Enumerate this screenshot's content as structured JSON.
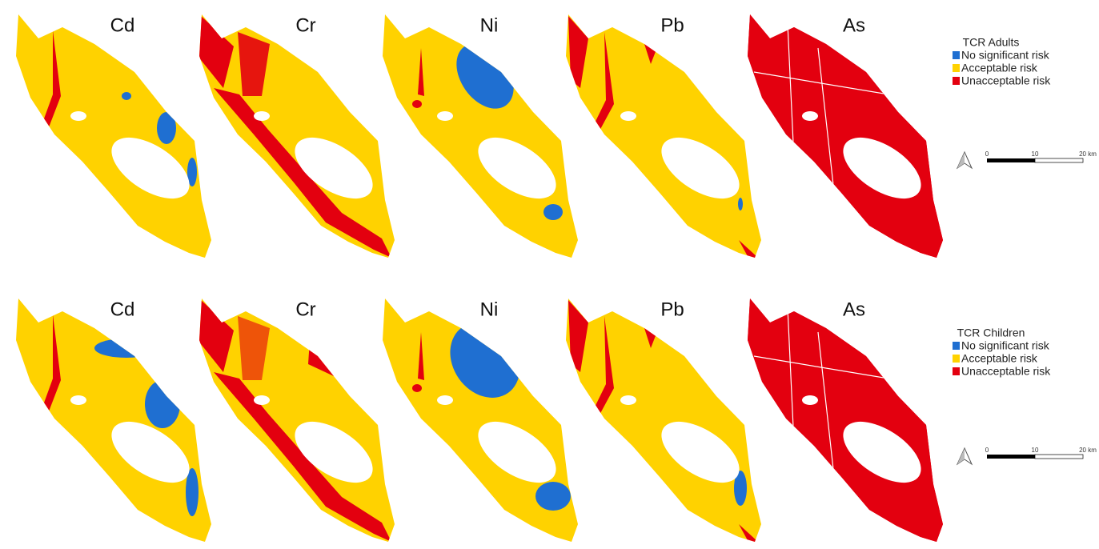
{
  "rows": [
    {
      "panels": [
        "Cd",
        "Cr",
        "Ni",
        "Pb",
        "As"
      ],
      "legend": {
        "title": "TCR Adults",
        "items": [
          "No significant risk",
          "Acceptable risk",
          "Unacceptable risk"
        ]
      },
      "scale": [
        "0",
        "10",
        "20 km"
      ]
    },
    {
      "panels": [
        "Cd",
        "Cr",
        "Ni",
        "Pb",
        "As"
      ],
      "legend": {
        "title": "TCR Children",
        "items": [
          "No significant risk",
          "Acceptable risk",
          "Unacceptable risk"
        ]
      },
      "scale": [
        "0",
        "10",
        "20 km"
      ]
    }
  ]
}
